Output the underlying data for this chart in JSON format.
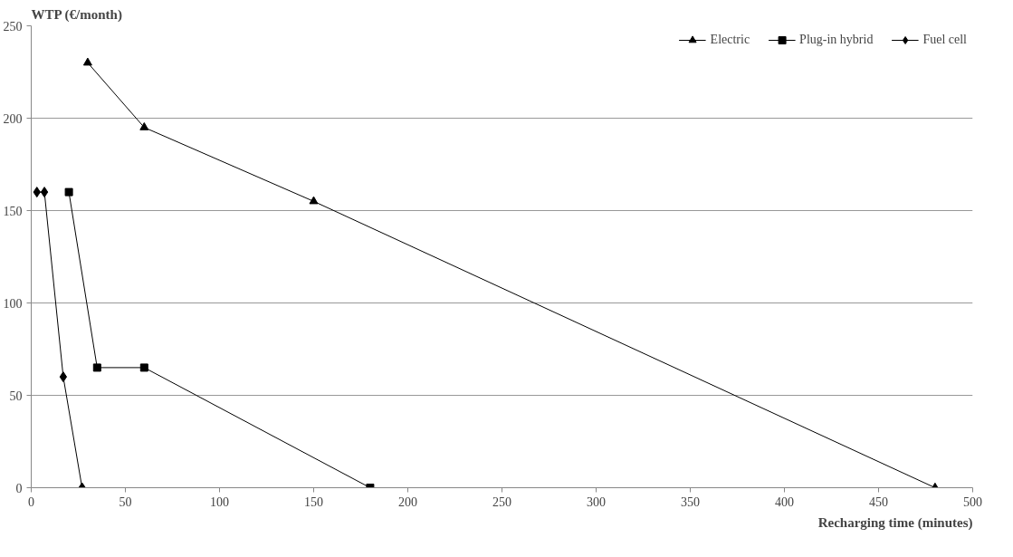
{
  "chart_data": {
    "type": "line",
    "xlabel": "Recharging time (minutes)",
    "ylabel": "WTP (€/month)",
    "xlim": [
      0,
      500
    ],
    "xticks": [
      0,
      50,
      100,
      150,
      200,
      250,
      300,
      350,
      400,
      450,
      500
    ],
    "ylim": [
      0,
      250
    ],
    "yticks": [
      0,
      50,
      100,
      150,
      200,
      250
    ],
    "grid": "y",
    "legend": "top right",
    "series": [
      {
        "name": "Electric",
        "color": "#000000",
        "marker": "triangle",
        "x": [
          30,
          60,
          150,
          480
        ],
        "values": [
          230,
          195,
          155,
          0
        ]
      },
      {
        "name": "Plug-in hybrid",
        "color": "#000000",
        "marker": "square",
        "x": [
          20,
          35,
          60,
          180
        ],
        "values": [
          160,
          65,
          65,
          0
        ]
      },
      {
        "name": "Fuel cell",
        "color": "#000000",
        "marker": "diamond",
        "x": [
          3,
          7,
          17,
          27
        ],
        "values": [
          160,
          160,
          60,
          0
        ]
      }
    ]
  }
}
